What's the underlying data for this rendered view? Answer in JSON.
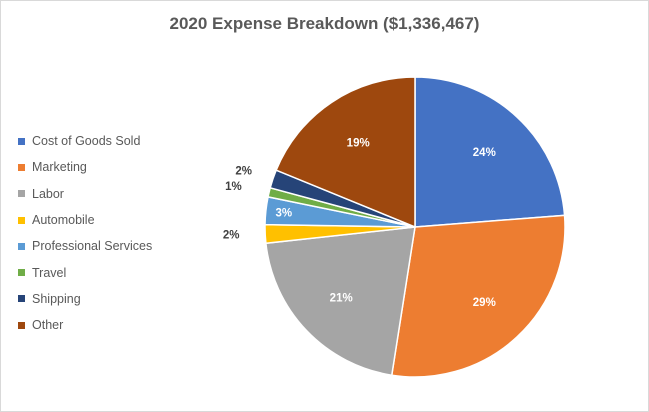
{
  "chart_data": {
    "type": "pie",
    "title": "2020 Expense Breakdown ($1,336,467)",
    "categories": [
      "Cost of Goods Sold",
      "Marketing",
      "Labor",
      "Automobile",
      "Professional Services",
      "Travel",
      "Shipping",
      "Other"
    ],
    "values": [
      24,
      29,
      21,
      2,
      3,
      1,
      2,
      19
    ],
    "data_labels": [
      "24%",
      "29%",
      "21%",
      "2%",
      "3%",
      "1%",
      "2%",
      "19%"
    ],
    "colors": [
      "#4472C4",
      "#ED7D31",
      "#A5A5A5",
      "#FFC000",
      "#5B9BD5",
      "#70AD47",
      "#264478",
      "#9E480E"
    ],
    "label_colors": [
      "#ffffff",
      "#ffffff",
      "#ffffff",
      "#404040",
      "#ffffff",
      "#404040",
      "#404040",
      "#ffffff"
    ],
    "legend_position": "left",
    "start_angle": "12 o'clock, clockwise"
  }
}
